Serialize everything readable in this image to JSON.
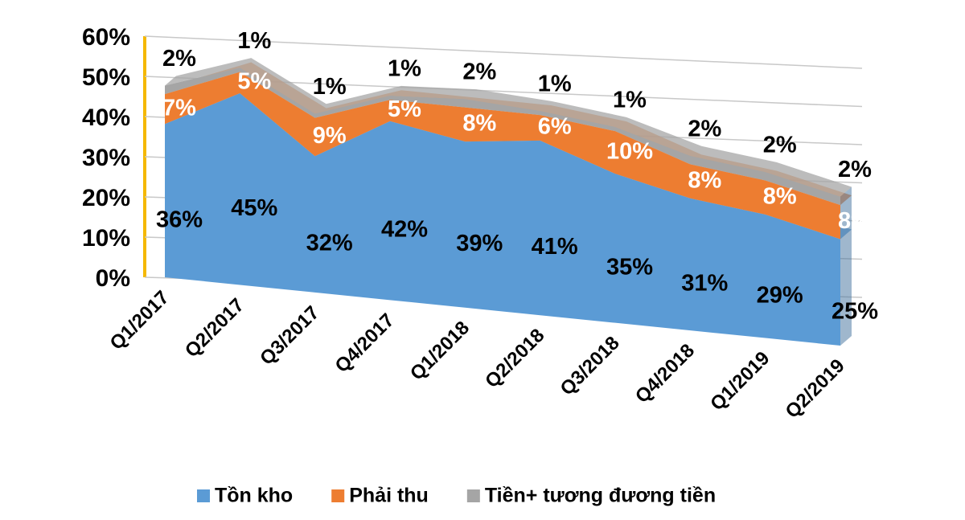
{
  "chart_data": {
    "type": "stacked_area_3d",
    "categories": [
      "Q1/2017",
      "Q2/2017",
      "Q3/2017",
      "Q4/2017",
      "Q1/2018",
      "Q2/2018",
      "Q3/2018",
      "Q4/2018",
      "Q1/2019",
      "Q2/2019"
    ],
    "series": [
      {
        "name": "Tồn kho",
        "color": "#5b9bd5",
        "values": [
          36,
          45,
          32,
          42,
          39,
          41,
          35,
          31,
          29,
          25
        ],
        "value_labels": [
          "36%",
          "45%",
          "32%",
          "42%",
          "39%",
          "41%",
          "35%",
          "31%",
          "29%",
          "25%"
        ]
      },
      {
        "name": "Phải thu",
        "color": "#ed7d31",
        "values": [
          7,
          5,
          9,
          5,
          8,
          6,
          10,
          8,
          8,
          8
        ],
        "value_labels": [
          "7%",
          "5%",
          "9%",
          "5%",
          "8%",
          "6%",
          "10%",
          "8%",
          "8%",
          "8%"
        ]
      },
      {
        "name": "Tiền+ tương đương tiền",
        "color": "#a5a5a5",
        "values": [
          2,
          1,
          1,
          1,
          2,
          1,
          1,
          2,
          2,
          2
        ],
        "value_labels": [
          "2%",
          "1%",
          "1%",
          "1%",
          "2%",
          "1%",
          "1%",
          "2%",
          "2%",
          "2%"
        ]
      }
    ],
    "ylim": [
      0,
      60
    ],
    "yticks": [
      {
        "value": 0,
        "label": "0%"
      },
      {
        "value": 10,
        "label": "10%"
      },
      {
        "value": 20,
        "label": "20%"
      },
      {
        "value": 30,
        "label": "30%"
      },
      {
        "value": 40,
        "label": "40%"
      },
      {
        "value": 50,
        "label": "50%"
      },
      {
        "value": 60,
        "label": "60%"
      }
    ],
    "grid": true,
    "legend": "bottom"
  }
}
